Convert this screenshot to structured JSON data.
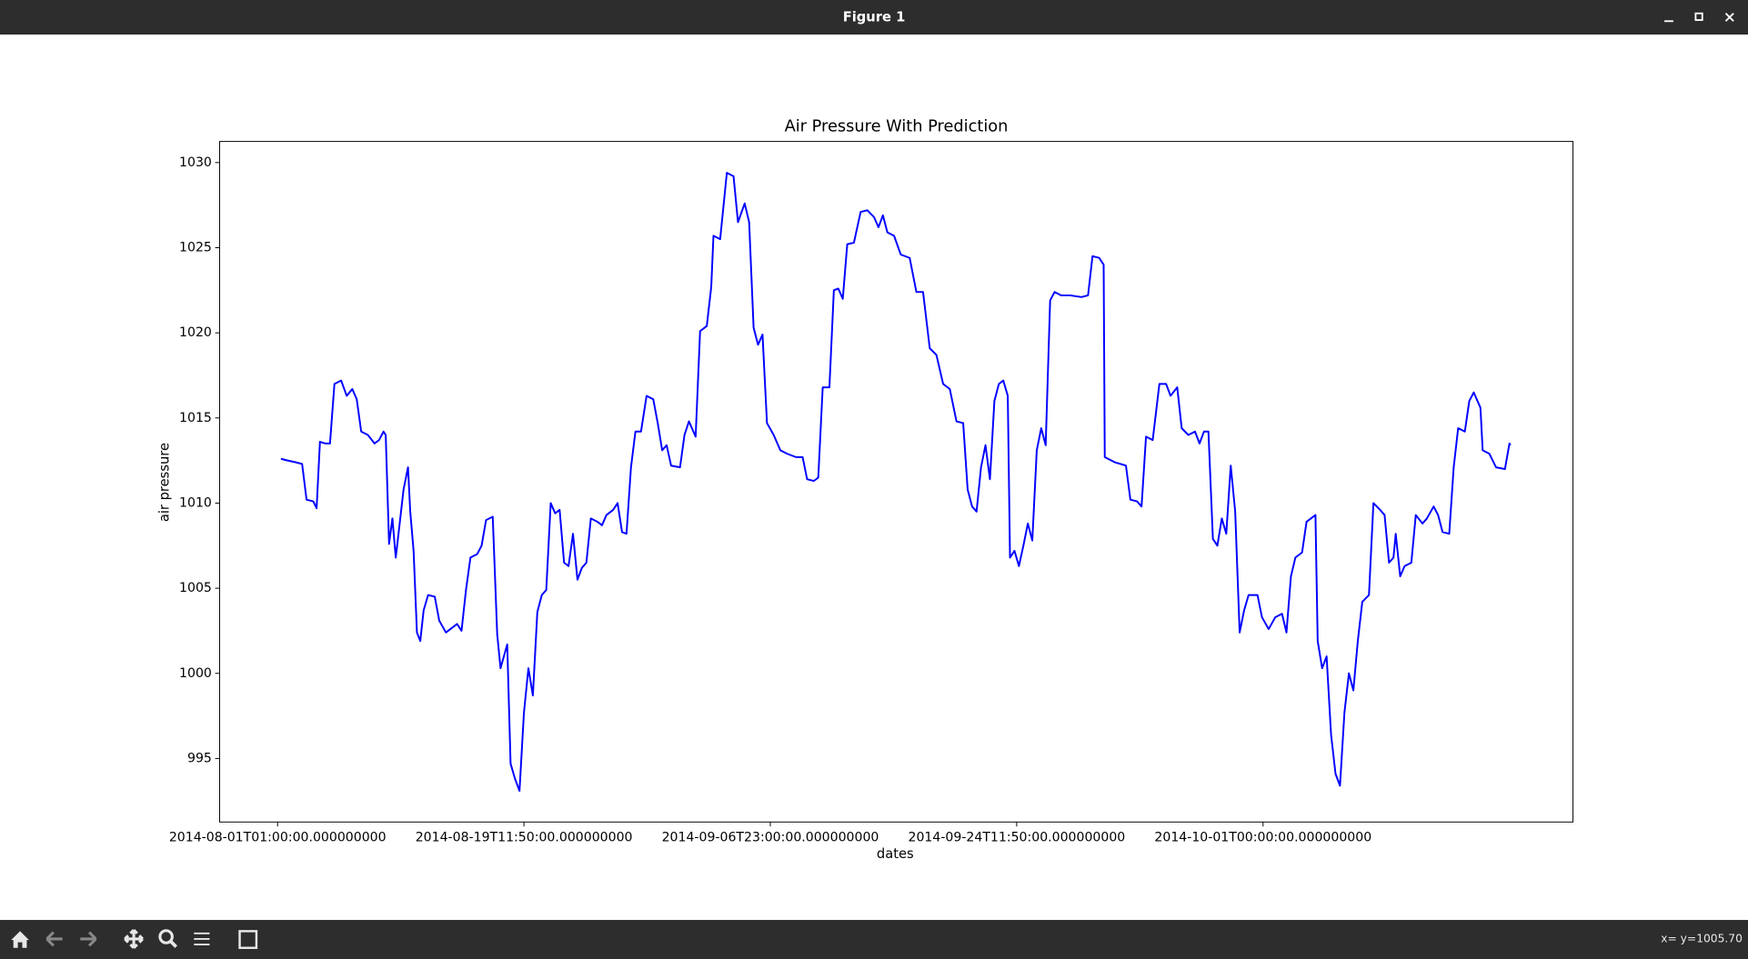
{
  "window": {
    "title": "Figure 1",
    "status": "x= y=1005.70"
  },
  "chart_data": {
    "type": "line",
    "title": "Air Pressure With Prediction",
    "x_label": "dates",
    "y_label": "air pressure",
    "color": "#0000ff",
    "xlim": [
      -52,
      1162
    ],
    "ylim": [
      991.27,
      1031.24
    ],
    "xticks": [
      {
        "value": 0,
        "label": "2014-08-01T01:00:00.000000000"
      },
      {
        "value": 221,
        "label": "2014-08-19T11:50:00.000000000"
      },
      {
        "value": 442,
        "label": "2014-09-06T23:00:00.000000000"
      },
      {
        "value": 663,
        "label": "2014-09-24T11:50:00.000000000"
      },
      {
        "value": 884,
        "label": "2014-10-01T00:00:00.000000000"
      }
    ],
    "yticks": [
      995,
      1000,
      1005,
      1010,
      1015,
      1020,
      1025,
      1030
    ],
    "x": [
      3,
      9,
      16,
      22,
      26,
      32,
      35,
      38,
      43,
      47,
      51,
      57,
      62,
      67,
      71,
      75,
      81,
      87,
      91,
      95,
      97,
      100,
      103,
      106,
      109,
      113,
      117,
      119,
      122,
      125,
      128,
      131,
      135,
      141,
      145,
      151,
      155,
      161,
      165,
      169,
      173,
      179,
      183,
      187,
      193,
      197,
      200,
      203,
      206,
      209,
      213,
      217,
      221,
      225,
      229,
      233,
      237,
      241,
      245,
      249,
      253,
      257,
      261,
      265,
      269,
      273,
      277,
      281,
      287,
      291,
      295,
      301,
      305,
      309,
      313,
      317,
      321,
      326,
      331,
      337,
      341,
      345,
      349,
      353,
      361,
      365,
      369,
      375,
      379,
      385,
      389,
      391,
      397,
      403,
      409,
      413,
      419,
      423,
      427,
      431,
      435,
      439,
      445,
      451,
      457,
      465,
      471,
      475,
      481,
      485,
      489,
      495,
      499,
      503,
      507,
      511,
      517,
      523,
      529,
      535,
      539,
      543,
      547,
      553,
      559,
      567,
      573,
      579,
      585,
      591,
      597,
      603,
      609,
      615,
      619,
      623,
      627,
      631,
      635,
      639,
      643,
      647,
      651,
      655,
      657,
      661,
      665,
      669,
      673,
      677,
      681,
      685,
      689,
      693,
      697,
      703,
      711,
      721,
      727,
      731,
      737,
      741,
      742,
      751,
      761,
      765,
      771,
      775,
      779,
      785,
      791,
      797,
      801,
      807,
      811,
      817,
      823,
      827,
      831,
      835,
      839,
      843,
      847,
      851,
      855,
      859,
      863,
      867,
      871,
      879,
      883,
      889,
      895,
      901,
      905,
      909,
      913,
      919,
      923,
      927,
      931,
      933,
      937,
      941,
      945,
      949,
      953,
      957,
      961,
      965,
      969,
      973,
      979,
      983,
      989,
      993,
      997,
      1001,
      1003,
      1007,
      1011,
      1017,
      1021,
      1027,
      1031,
      1037,
      1041,
      1045,
      1051,
      1055,
      1059,
      1065,
      1069,
      1073,
      1079,
      1081,
      1087,
      1093,
      1101,
      1105,
      1106
    ],
    "values": [
      1012.6,
      1012.5,
      1012.4,
      1012.3,
      1010.2,
      1010.1,
      1009.7,
      1013.6,
      1013.5,
      1013.5,
      1017.0,
      1017.2,
      1016.3,
      1016.7,
      1016.1,
      1014.2,
      1014.0,
      1013.5,
      1013.7,
      1014.2,
      1014.0,
      1007.6,
      1009.1,
      1006.8,
      1008.5,
      1010.8,
      1012.1,
      1009.5,
      1007.2,
      1002.4,
      1001.9,
      1003.7,
      1004.6,
      1004.5,
      1003.1,
      1002.4,
      1002.6,
      1002.9,
      1002.5,
      1004.9,
      1006.8,
      1007.0,
      1007.5,
      1009.0,
      1009.2,
      1002.3,
      1000.3,
      1001.0,
      1001.7,
      994.7,
      993.8,
      993.1,
      997.7,
      1000.3,
      998.7,
      1003.6,
      1004.6,
      1004.9,
      1010.0,
      1009.4,
      1009.6,
      1006.5,
      1006.3,
      1008.2,
      1005.5,
      1006.2,
      1006.5,
      1009.1,
      1008.9,
      1008.7,
      1009.3,
      1009.6,
      1010.0,
      1008.3,
      1008.2,
      1012.1,
      1014.2,
      1014.2,
      1016.3,
      1016.1,
      1014.7,
      1013.1,
      1013.4,
      1012.2,
      1012.1,
      1014.0,
      1014.8,
      1013.9,
      1020.1,
      1020.4,
      1022.7,
      1025.7,
      1025.5,
      1029.4,
      1029.2,
      1026.5,
      1027.6,
      1026.5,
      1020.3,
      1019.3,
      1019.9,
      1014.7,
      1014.0,
      1013.1,
      1012.9,
      1012.7,
      1012.7,
      1011.4,
      1011.3,
      1011.5,
      1016.8,
      1016.8,
      1022.5,
      1022.6,
      1022.0,
      1025.2,
      1025.3,
      1027.1,
      1027.2,
      1026.8,
      1026.2,
      1026.9,
      1025.9,
      1025.7,
      1024.6,
      1024.4,
      1022.4,
      1022.4,
      1019.1,
      1018.7,
      1017.0,
      1016.7,
      1014.8,
      1014.7,
      1010.8,
      1009.8,
      1009.5,
      1012.1,
      1013.4,
      1011.4,
      1016.0,
      1017.0,
      1017.2,
      1016.3,
      1006.8,
      1007.2,
      1006.3,
      1007.5,
      1008.8,
      1007.8,
      1013.1,
      1014.4,
      1013.4,
      1021.9,
      1022.4,
      1022.2,
      1022.2,
      1022.1,
      1022.2,
      1024.5,
      1024.4,
      1024.0,
      1012.7,
      1012.4,
      1012.2,
      1010.2,
      1010.1,
      1009.8,
      1013.9,
      1013.7,
      1017.0,
      1017.0,
      1016.3,
      1016.8,
      1014.4,
      1014.0,
      1014.2,
      1013.5,
      1014.2,
      1014.2,
      1007.9,
      1007.5,
      1009.1,
      1008.2,
      1012.2,
      1009.5,
      1002.4,
      1003.7,
      1004.6,
      1004.6,
      1003.3,
      1002.6,
      1003.3,
      1003.5,
      1002.4,
      1005.7,
      1006.8,
      1007.1,
      1008.9,
      1009.1,
      1009.3,
      1001.9,
      1000.3,
      1001.0,
      996.4,
      994.1,
      993.4,
      997.7,
      1000.0,
      999.0,
      1001.9,
      1004.2,
      1004.6,
      1010.0,
      1009.6,
      1009.3,
      1006.5,
      1006.8,
      1008.2,
      1005.7,
      1006.3,
      1006.5,
      1009.3,
      1008.8,
      1009.1,
      1009.8,
      1009.3,
      1008.3,
      1008.2,
      1012.1,
      1014.4,
      1014.2,
      1016.0,
      1016.5,
      1015.6,
      1013.1,
      1012.9,
      1012.1,
      1012.0,
      1013.5,
      1013.4
    ]
  }
}
